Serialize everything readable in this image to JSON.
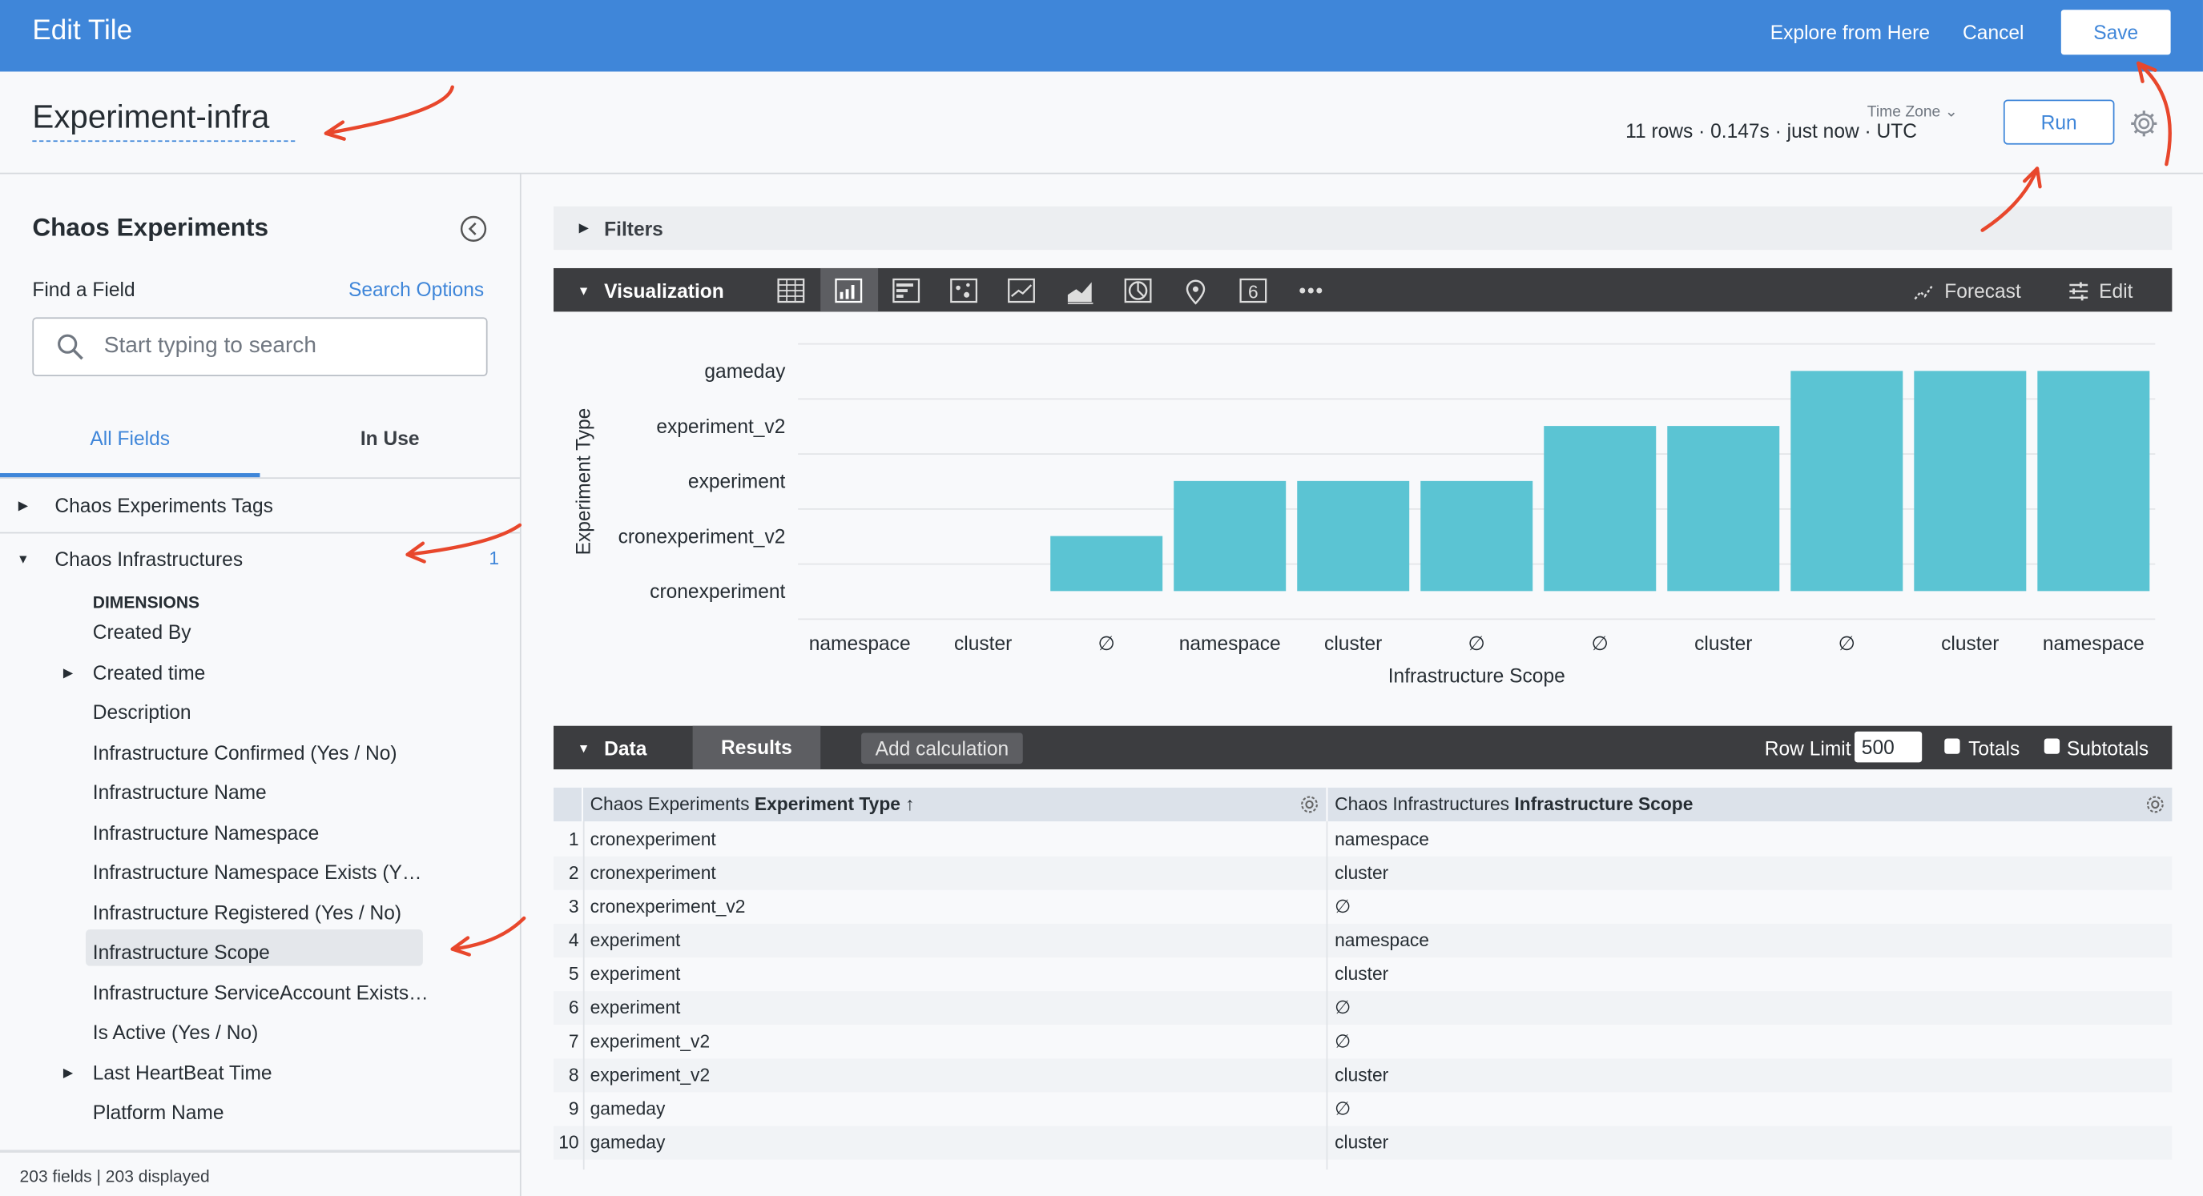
{
  "header": {
    "title": "Edit Tile",
    "explore": "Explore from Here",
    "cancel": "Cancel",
    "save": "Save"
  },
  "subheader": {
    "tile_name": "Experiment-infra",
    "time_zone_label": "Time Zone",
    "status": "11 rows · 0.147s · just now · UTC",
    "run": "Run"
  },
  "sidebar": {
    "title": "Chaos Experiments",
    "find_label": "Find a Field",
    "search_options": "Search Options",
    "search_placeholder": "Start typing to search",
    "tabs": [
      {
        "label": "All Fields",
        "active": true
      },
      {
        "label": "In Use",
        "active": false
      }
    ],
    "groups": [
      {
        "label": "Chaos Experiments Tags",
        "expanded": false
      },
      {
        "label": "Chaos Infrastructures",
        "expanded": true,
        "count": "1"
      }
    ],
    "section": "DIMENSIONS",
    "fields": [
      {
        "label": "Created By",
        "expandable": false
      },
      {
        "label": "Created time",
        "expandable": true
      },
      {
        "label": "Description",
        "expandable": false
      },
      {
        "label": "Infrastructure Confirmed (Yes / No)",
        "expandable": false
      },
      {
        "label": "Infrastructure Name",
        "expandable": false
      },
      {
        "label": "Infrastructure Namespace",
        "expandable": false
      },
      {
        "label": "Infrastructure Namespace Exists (Y…",
        "expandable": false
      },
      {
        "label": "Infrastructure Registered (Yes / No)",
        "expandable": false
      },
      {
        "label": "Infrastructure Scope",
        "expandable": false,
        "selected": true
      },
      {
        "label": "Infrastructure ServiceAccount Exists…",
        "expandable": false
      },
      {
        "label": "Is Active (Yes / No)",
        "expandable": false
      },
      {
        "label": "Last HeartBeat Time",
        "expandable": true
      },
      {
        "label": "Platform Name",
        "expandable": false
      }
    ],
    "footer": "203 fields | 203 displayed"
  },
  "filters": {
    "label": "Filters"
  },
  "visualization": {
    "label": "Visualization",
    "icons": [
      "table-icon",
      "column-chart-icon",
      "bar-chart-icon",
      "scatter-icon",
      "line-chart-icon",
      "area-chart-icon",
      "pie-chart-icon",
      "map-pin-icon",
      "single-value-icon",
      "more-icon"
    ],
    "active_icon": "column-chart-icon",
    "single_value_glyph": "6",
    "forecast": "Forecast",
    "edit": "Edit"
  },
  "chart_data": {
    "type": "bar",
    "xlabel": "Infrastructure Scope",
    "ylabel": "Experiment Type",
    "y_categories": [
      "cronexperiment",
      "cronexperiment_v2",
      "experiment",
      "experiment_v2",
      "gameday"
    ],
    "categories": [
      "namespace",
      "cluster",
      "∅",
      "namespace",
      "cluster",
      "∅",
      "∅",
      "cluster",
      "∅",
      "cluster",
      "namespace"
    ],
    "values": [
      "cronexperiment",
      "cronexperiment",
      "cronexperiment_v2",
      "experiment",
      "experiment",
      "experiment",
      "experiment_v2",
      "experiment_v2",
      "gameday",
      "gameday",
      "gameday"
    ],
    "color": "#5bc4d3",
    "grid": true
  },
  "data_bar": {
    "label": "Data",
    "results": "Results",
    "add_calc": "Add calculation",
    "row_limit_label": "Row Limit",
    "row_limit": "500",
    "totals": "Totals",
    "subtotals": "Subtotals"
  },
  "table": {
    "col1_prefix": "Chaos Experiments ",
    "col1_field": "Experiment Type",
    "col1_sort": "↑",
    "col2_prefix": "Chaos Infrastructures ",
    "col2_field": "Infrastructure Scope",
    "rows": [
      [
        "1",
        "cronexperiment",
        "namespace"
      ],
      [
        "2",
        "cronexperiment",
        "cluster"
      ],
      [
        "3",
        "cronexperiment_v2",
        "∅"
      ],
      [
        "4",
        "experiment",
        "namespace"
      ],
      [
        "5",
        "experiment",
        "cluster"
      ],
      [
        "6",
        "experiment",
        "∅"
      ],
      [
        "7",
        "experiment_v2",
        "∅"
      ],
      [
        "8",
        "experiment_v2",
        "cluster"
      ],
      [
        "9",
        "gameday",
        "∅"
      ],
      [
        "10",
        "gameday",
        "cluster"
      ]
    ]
  },
  "colors": {
    "header": "#3f86d9",
    "accent": "#3f86d9",
    "bar": "#5bc4d3",
    "dark_bar": "#3c3d40",
    "annotation": "#e8472c"
  }
}
